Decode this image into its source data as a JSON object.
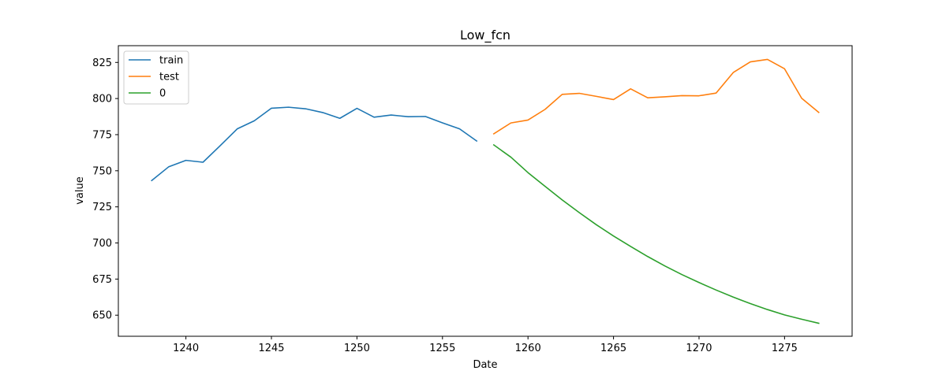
{
  "chart_data": {
    "type": "line",
    "title": "Low_fcn",
    "xlabel": "Date",
    "ylabel": "value",
    "xlim": [
      1236.05,
      1278.95
    ],
    "ylim": [
      635.4,
      836.6
    ],
    "xticks": [
      1240,
      1245,
      1250,
      1255,
      1260,
      1265,
      1270,
      1275
    ],
    "yticks": [
      650,
      675,
      700,
      725,
      750,
      775,
      800,
      825
    ],
    "grid": false,
    "legend_position": "top-left",
    "series": [
      {
        "name": "train",
        "color": "#1f77b4",
        "x": [
          1238,
          1239,
          1240,
          1241,
          1242,
          1243,
          1244,
          1245,
          1246,
          1247,
          1248,
          1249,
          1250,
          1251,
          1252,
          1253,
          1254,
          1255,
          1256,
          1257
        ],
        "values": [
          743.2,
          752.8,
          757.2,
          755.9,
          767.3,
          779.0,
          784.6,
          793.3,
          794.0,
          792.9,
          790.3,
          786.3,
          793.2,
          787.1,
          788.6,
          787.4,
          787.6,
          783.2,
          779.0,
          770.6
        ]
      },
      {
        "name": "test",
        "color": "#ff7f0e",
        "x": [
          1258,
          1259,
          1260,
          1261,
          1262,
          1263,
          1264,
          1265,
          1266,
          1267,
          1268,
          1269,
          1270,
          1271,
          1272,
          1273,
          1274,
          1275,
          1276,
          1277
        ],
        "values": [
          775.6,
          783.1,
          785.1,
          792.5,
          802.9,
          803.6,
          801.5,
          799.3,
          806.7,
          800.5,
          801.2,
          802.0,
          801.9,
          803.8,
          818.0,
          825.4,
          827.1,
          820.6,
          800.2,
          790.4
        ]
      },
      {
        "name": "0",
        "color": "#2ca02c",
        "x": [
          1258,
          1259,
          1260,
          1261,
          1262,
          1263,
          1264,
          1265,
          1266,
          1267,
          1268,
          1269,
          1270,
          1271,
          1272,
          1273,
          1274,
          1275,
          1276,
          1277
        ],
        "values": [
          767.9,
          759.4,
          748.7,
          739.2,
          729.8,
          721.0,
          712.6,
          704.8,
          697.6,
          690.6,
          684.1,
          678.1,
          672.6,
          667.4,
          662.5,
          658.0,
          653.9,
          650.2,
          647.2,
          644.4
        ]
      }
    ]
  }
}
